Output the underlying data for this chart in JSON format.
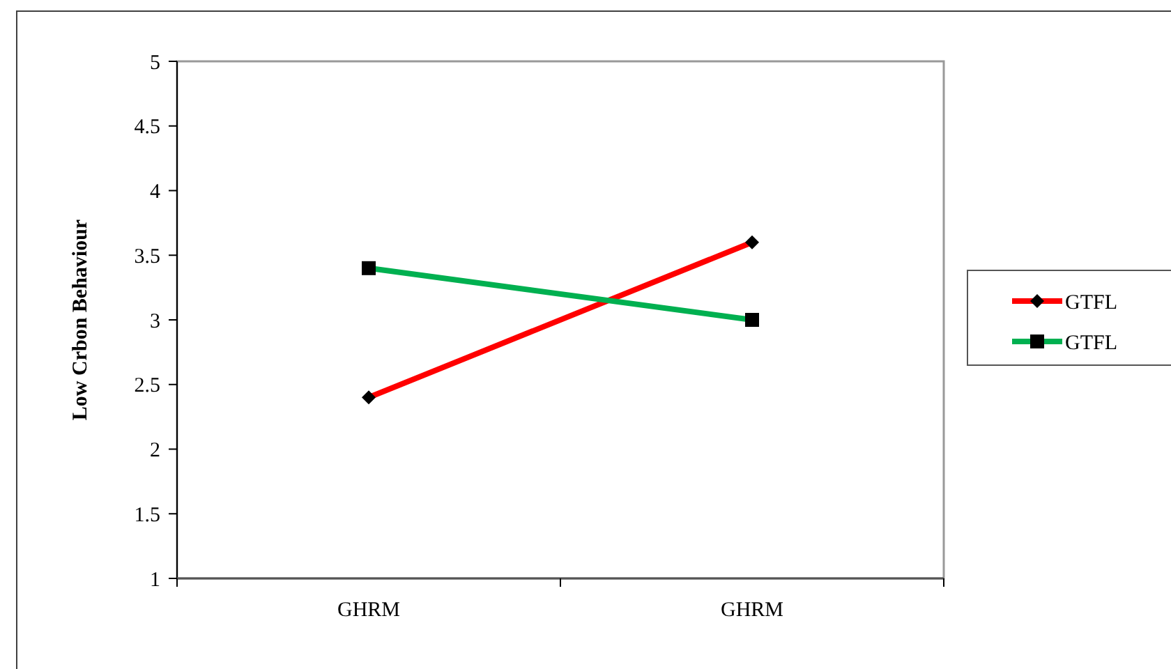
{
  "chart_data": {
    "type": "line",
    "ylabel": "Low Crbon Behaviour",
    "categories": [
      "GHRM",
      "GHRM"
    ],
    "series": [
      {
        "name": "GTFL",
        "color": "#ff0000",
        "values": [
          2.4,
          3.6
        ],
        "marker": "diamond"
      },
      {
        "name": "GTFL",
        "color": "#00b050",
        "values": [
          3.4,
          3.0
        ],
        "marker": "square"
      }
    ],
    "ylim": [
      1,
      5
    ],
    "yticks": [
      1,
      1.5,
      2,
      2.5,
      3,
      3.5,
      4,
      4.5,
      5
    ],
    "legend": "right",
    "line_style": "solid"
  }
}
